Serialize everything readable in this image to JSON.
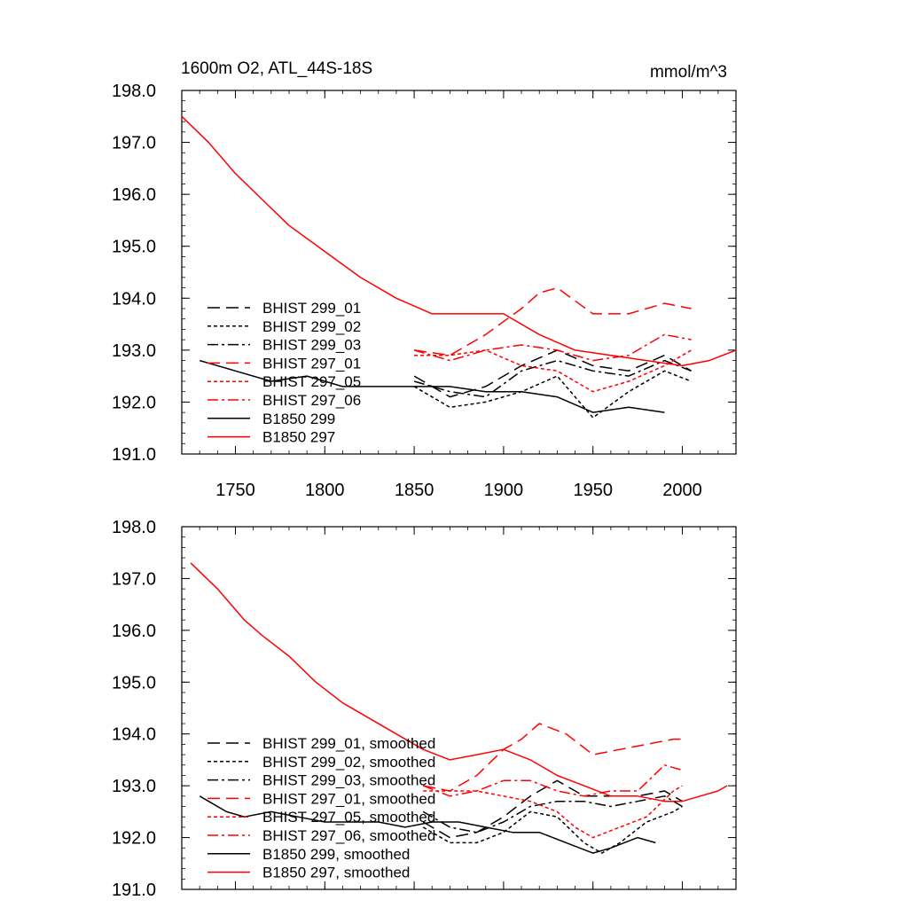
{
  "header": {
    "title": "1600m O2, ATL_44S-18S",
    "units": "mmol/m^3"
  },
  "axes": {
    "xlim": [
      1720,
      2030
    ],
    "ylim": [
      191.0,
      198.0
    ],
    "x_ticks": [
      1750,
      1800,
      1850,
      1900,
      1950,
      2000
    ],
    "y_ticks": [
      "191.0",
      "192.0",
      "193.0",
      "194.0",
      "195.0",
      "196.0",
      "197.0",
      "198.0"
    ]
  },
  "chart_data": [
    {
      "type": "line",
      "title": "1600m O2, ATL_44S-18S",
      "units": "mmol/m^3",
      "xlim": [
        1720,
        2030
      ],
      "ylim": [
        191.0,
        198.0
      ],
      "legend_placement": "bottom-left",
      "grid": false,
      "series": [
        {
          "name": "BHIST 299_01",
          "color": "#000000",
          "dash": "long-dash",
          "x": [
            1850,
            1870,
            1890,
            1910,
            1930,
            1950,
            1970,
            1990,
            2005
          ],
          "y": [
            192.5,
            192.1,
            192.3,
            192.7,
            193.0,
            192.7,
            192.6,
            192.9,
            192.6
          ]
        },
        {
          "name": "BHIST 299_02",
          "color": "#000000",
          "dash": "dotted",
          "x": [
            1850,
            1870,
            1890,
            1910,
            1930,
            1950,
            1970,
            1990,
            2005
          ],
          "y": [
            192.3,
            191.9,
            192.0,
            192.2,
            192.5,
            191.7,
            192.2,
            192.6,
            192.4
          ]
        },
        {
          "name": "BHIST 299_03",
          "color": "#000000",
          "dash": "dash-dot",
          "x": [
            1850,
            1870,
            1890,
            1910,
            1930,
            1950,
            1970,
            1990,
            2005
          ],
          "y": [
            192.4,
            192.2,
            192.1,
            192.6,
            192.8,
            192.6,
            192.5,
            192.8,
            192.6
          ]
        },
        {
          "name": "BHIST 297_01",
          "color": "#ff0000",
          "dash": "long-dash",
          "x": [
            1850,
            1870,
            1890,
            1910,
            1920,
            1930,
            1950,
            1970,
            1990,
            2005
          ],
          "y": [
            193.0,
            192.9,
            193.3,
            193.8,
            194.1,
            194.2,
            193.7,
            193.7,
            193.9,
            193.8
          ]
        },
        {
          "name": "BHIST 297_05",
          "color": "#ff0000",
          "dash": "dotted",
          "x": [
            1850,
            1870,
            1890,
            1910,
            1930,
            1950,
            1970,
            1990,
            2005
          ],
          "y": [
            192.9,
            192.9,
            193.0,
            192.7,
            192.6,
            192.2,
            192.4,
            192.7,
            193.0
          ]
        },
        {
          "name": "BHIST 297_06",
          "color": "#ff0000",
          "dash": "dash-dot",
          "x": [
            1850,
            1870,
            1890,
            1910,
            1930,
            1950,
            1970,
            1990,
            2005
          ],
          "y": [
            193.0,
            192.8,
            193.0,
            193.1,
            193.0,
            192.8,
            192.9,
            193.3,
            193.2
          ]
        },
        {
          "name": "B1850 299",
          "color": "#000000",
          "dash": "solid",
          "x": [
            1730,
            1750,
            1770,
            1790,
            1810,
            1830,
            1850,
            1870,
            1890,
            1910,
            1930,
            1950,
            1970,
            1990
          ],
          "y": [
            192.8,
            192.6,
            192.4,
            192.5,
            192.3,
            192.3,
            192.3,
            192.3,
            192.2,
            192.2,
            192.1,
            191.8,
            191.9,
            191.8
          ]
        },
        {
          "name": "B1850 297",
          "color": "#ff0000",
          "dash": "solid",
          "x": [
            1720,
            1735,
            1750,
            1765,
            1780,
            1800,
            1820,
            1840,
            1860,
            1880,
            1900,
            1920,
            1940,
            1960,
            1980,
            2000,
            2015,
            2030
          ],
          "y": [
            197.5,
            197.0,
            196.4,
            195.9,
            195.4,
            194.9,
            194.4,
            194.0,
            193.7,
            193.7,
            193.7,
            193.3,
            193.0,
            192.9,
            192.8,
            192.7,
            192.8,
            193.0
          ]
        }
      ]
    },
    {
      "type": "line",
      "xlim": [
        1720,
        2030
      ],
      "ylim": [
        191.0,
        198.0
      ],
      "legend_placement": "bottom-left",
      "grid": false,
      "series": [
        {
          "name": "BHIST 299_01, smoothed",
          "color": "#000000",
          "dash": "long-dash",
          "x": [
            1855,
            1870,
            1885,
            1900,
            1915,
            1930,
            1945,
            1960,
            1975,
            1990,
            2000
          ],
          "y": [
            192.3,
            192.0,
            192.1,
            192.4,
            192.8,
            193.1,
            192.8,
            192.8,
            192.8,
            192.9,
            192.7
          ]
        },
        {
          "name": "BHIST 299_02, smoothed",
          "color": "#000000",
          "dash": "dotted",
          "x": [
            1855,
            1870,
            1885,
            1900,
            1915,
            1930,
            1945,
            1955,
            1965,
            1980,
            1995,
            2000
          ],
          "y": [
            192.2,
            191.9,
            191.9,
            192.1,
            192.5,
            192.4,
            191.9,
            191.7,
            191.9,
            192.3,
            192.5,
            192.6
          ]
        },
        {
          "name": "BHIST 299_03, smoothed",
          "color": "#000000",
          "dash": "dash-dot",
          "x": [
            1855,
            1870,
            1885,
            1900,
            1915,
            1930,
            1945,
            1960,
            1975,
            1990,
            2000
          ],
          "y": [
            192.5,
            192.2,
            192.1,
            192.3,
            192.6,
            192.7,
            192.7,
            192.6,
            192.7,
            192.8,
            192.6
          ]
        },
        {
          "name": "BHIST 297_01, smoothed",
          "color": "#ff0000",
          "dash": "long-dash",
          "x": [
            1855,
            1870,
            1885,
            1900,
            1910,
            1920,
            1935,
            1950,
            1965,
            1980,
            1995,
            2000
          ],
          "y": [
            193.0,
            192.9,
            193.2,
            193.7,
            193.9,
            194.2,
            194.0,
            193.6,
            193.7,
            193.8,
            193.9,
            193.9
          ]
        },
        {
          "name": "BHIST 297_05, smoothed",
          "color": "#ff0000",
          "dash": "dotted",
          "x": [
            1855,
            1870,
            1885,
            1900,
            1915,
            1930,
            1940,
            1950,
            1965,
            1980,
            1995,
            2000
          ],
          "y": [
            192.9,
            192.9,
            192.9,
            192.8,
            192.7,
            192.5,
            192.2,
            192.0,
            192.2,
            192.4,
            192.9,
            193.0
          ]
        },
        {
          "name": "BHIST 297_06, smoothed",
          "color": "#ff0000",
          "dash": "dash-dot",
          "x": [
            1855,
            1870,
            1885,
            1900,
            1915,
            1930,
            1945,
            1960,
            1975,
            1990,
            2000
          ],
          "y": [
            193.0,
            192.8,
            192.9,
            193.1,
            193.1,
            192.9,
            192.8,
            192.9,
            192.9,
            193.4,
            193.3
          ]
        },
        {
          "name": "B1850 299, smoothed",
          "color": "#000000",
          "dash": "solid",
          "x": [
            1730,
            1745,
            1755,
            1770,
            1785,
            1800,
            1815,
            1830,
            1845,
            1860,
            1875,
            1890,
            1905,
            1920,
            1935,
            1950,
            1960,
            1975,
            1985
          ],
          "y": [
            192.8,
            192.5,
            192.4,
            192.5,
            192.4,
            192.3,
            192.3,
            192.3,
            192.2,
            192.3,
            192.3,
            192.2,
            192.1,
            192.1,
            191.9,
            191.7,
            191.8,
            192.0,
            191.9
          ]
        },
        {
          "name": "B1850 297, smoothed",
          "color": "#ff0000",
          "dash": "solid",
          "x": [
            1725,
            1740,
            1755,
            1765,
            1780,
            1795,
            1810,
            1825,
            1840,
            1855,
            1870,
            1885,
            1900,
            1915,
            1930,
            1945,
            1960,
            1975,
            1990,
            2000,
            2010,
            2020,
            2025
          ],
          "y": [
            197.3,
            196.8,
            196.2,
            195.9,
            195.5,
            195.0,
            194.6,
            194.3,
            194.0,
            193.7,
            193.5,
            193.6,
            193.7,
            193.5,
            193.2,
            193.0,
            192.8,
            192.8,
            192.7,
            192.7,
            192.8,
            192.9,
            193.0
          ]
        }
      ]
    }
  ]
}
